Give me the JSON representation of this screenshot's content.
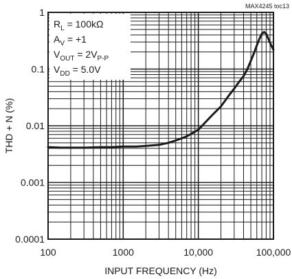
{
  "chart_data": {
    "type": "line",
    "code_label": "MAX4245 toc13",
    "xlabel": "INPUT FREQUENCY (Hz)",
    "ylabel": "THD + N (%)",
    "x_scale": "log",
    "y_scale": "log",
    "xlim": [
      100,
      100000
    ],
    "ylim": [
      0.0001,
      1
    ],
    "grid": true,
    "x_ticks": [
      {
        "value": 100,
        "label": "100"
      },
      {
        "value": 1000,
        "label": "1000"
      },
      {
        "value": 10000,
        "label": "10,000"
      },
      {
        "value": 100000,
        "label": "100,000"
      }
    ],
    "y_ticks": [
      {
        "value": 1,
        "label": "1"
      },
      {
        "value": 0.1,
        "label": "0.1"
      },
      {
        "value": 0.01,
        "label": "0.01"
      },
      {
        "value": 0.001,
        "label": "0.001"
      },
      {
        "value": 0.0001,
        "label": "0.0001"
      }
    ],
    "conditions": [
      {
        "main": "R",
        "sub": "L",
        "rest": " = 100kΩ"
      },
      {
        "main": "A",
        "sub": "V",
        "rest": " = +1"
      },
      {
        "main": "V",
        "sub": "OUT",
        "rest": " = 2V",
        "sub2": "P-P"
      },
      {
        "main": "V",
        "sub": "DD",
        "rest": " = 5.0V"
      }
    ],
    "series": [
      {
        "color": "#1a1a1a",
        "points": [
          [
            100,
            0.0042
          ],
          [
            150,
            0.0041
          ],
          [
            200,
            0.0041
          ],
          [
            300,
            0.0041
          ],
          [
            500,
            0.0042
          ],
          [
            700,
            0.0042
          ],
          [
            1000,
            0.0043
          ],
          [
            1500,
            0.0043
          ],
          [
            2000,
            0.0044
          ],
          [
            3000,
            0.0046
          ],
          [
            4000,
            0.005
          ],
          [
            5000,
            0.0055
          ],
          [
            6000,
            0.006
          ],
          [
            7000,
            0.0065
          ],
          [
            8000,
            0.0072
          ],
          [
            10000,
            0.0085
          ],
          [
            12000,
            0.011
          ],
          [
            15000,
            0.015
          ],
          [
            20000,
            0.022
          ],
          [
            25000,
            0.033
          ],
          [
            30000,
            0.045
          ],
          [
            35000,
            0.06
          ],
          [
            40000,
            0.075
          ],
          [
            45000,
            0.1
          ],
          [
            50000,
            0.14
          ],
          [
            55000,
            0.19
          ],
          [
            60000,
            0.26
          ],
          [
            65000,
            0.34
          ],
          [
            70000,
            0.42
          ],
          [
            75000,
            0.45
          ],
          [
            80000,
            0.42
          ],
          [
            85000,
            0.35
          ],
          [
            90000,
            0.29
          ],
          [
            95000,
            0.25
          ],
          [
            100000,
            0.22
          ]
        ]
      }
    ]
  }
}
